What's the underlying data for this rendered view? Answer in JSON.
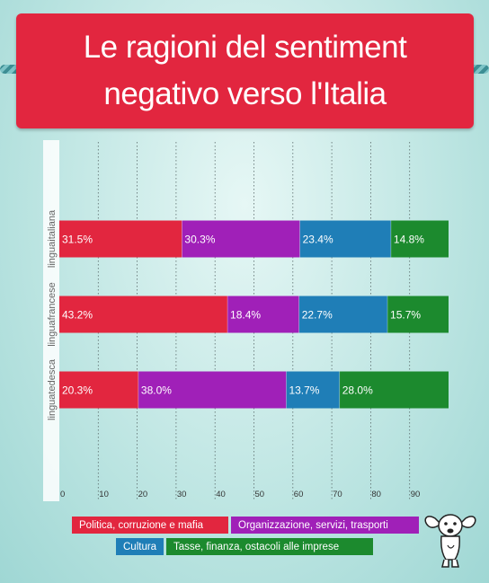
{
  "title": "Le ragioni del sentiment negativo verso l'Italia",
  "colors": {
    "politica": "#e2263f",
    "organizzazione": "#a020b8",
    "cultura": "#1f7eb7",
    "tasse": "#1c8a2e",
    "title_bg": "#e2263f"
  },
  "chart_data": {
    "type": "bar",
    "orientation": "horizontal",
    "stacked": true,
    "categories": [
      "linguaitaliana",
      "linguafrancese",
      "linguatedesca"
    ],
    "series": [
      {
        "name": "Politica, corruzione e mafia",
        "values": [
          31.5,
          43.2,
          20.3
        ],
        "labels": [
          "31.5%",
          "43.2%",
          "20.3%"
        ]
      },
      {
        "name": "Organizzazione, servizi, trasporti",
        "values": [
          30.3,
          18.4,
          38.0
        ],
        "labels": [
          "30.3%",
          "18.4%",
          "38.0%"
        ]
      },
      {
        "name": "Cultura",
        "values": [
          23.4,
          22.7,
          13.7
        ],
        "labels": [
          "23.4%",
          "22.7%",
          "13.7%"
        ]
      },
      {
        "name": "Tasse, finanza, ostacoli alle imprese",
        "values": [
          14.8,
          15.7,
          28.0
        ],
        "labels": [
          "14.8%",
          "15.7%",
          "28.0%"
        ]
      }
    ],
    "x_ticks": [
      "0",
      "10",
      "20",
      "30",
      "40",
      "50",
      "60",
      "70",
      "80",
      "90"
    ],
    "xlim": [
      0,
      100
    ],
    "grid": true,
    "legend_position": "bottom"
  },
  "legend": [
    {
      "label": "Politica, corruzione e mafia",
      "color_key": "politica"
    },
    {
      "label": "Organizzazione, servizi, trasporti",
      "color_key": "organizzazione"
    },
    {
      "label": "Cultura",
      "color_key": "cultura"
    },
    {
      "label": "Tasse, finanza, ostacoli alle imprese",
      "color_key": "tasse"
    }
  ],
  "mascot_icon": "basset-dog-icon"
}
